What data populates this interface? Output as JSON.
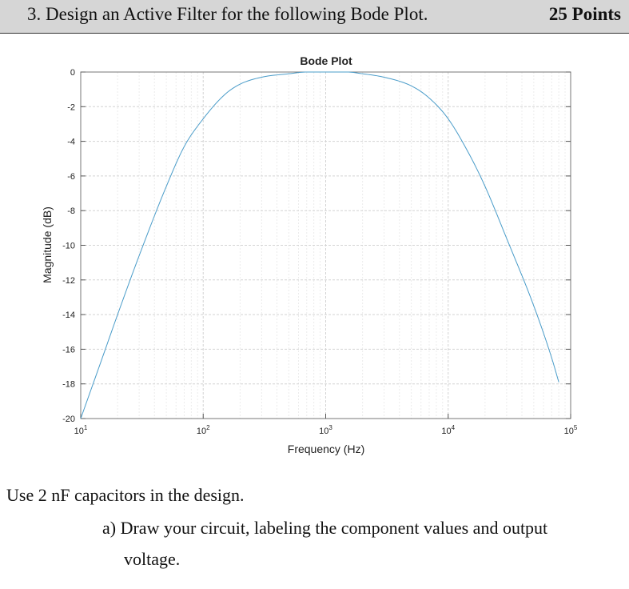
{
  "header": {
    "question": "3. Design an Active Filter for the following Bode Plot.",
    "points": "25 Points"
  },
  "chart_data": {
    "type": "line",
    "title": "Bode Plot",
    "xlabel": "Frequency (Hz)",
    "ylabel": "Magnitude (dB)",
    "xscale": "log",
    "xlim": [
      10,
      100000
    ],
    "ylim": [
      -20,
      0
    ],
    "grid": true,
    "x_ticks": [
      {
        "value": 10,
        "base": "10",
        "exp": "1"
      },
      {
        "value": 100,
        "base": "10",
        "exp": "2"
      },
      {
        "value": 1000,
        "base": "10",
        "exp": "3"
      },
      {
        "value": 10000,
        "base": "10",
        "exp": "4"
      },
      {
        "value": 100000,
        "base": "10",
        "exp": "5"
      }
    ],
    "y_ticks": [
      "0",
      "-2",
      "-4",
      "-6",
      "-8",
      "-10",
      "-12",
      "-14",
      "-16",
      "-18",
      "-20"
    ],
    "line_color": "#4a9cc9",
    "series": [
      {
        "x": [
          10,
          15,
          20,
          30,
          50,
          70,
          100,
          150,
          200,
          300,
          500,
          700,
          1000,
          1500,
          2000,
          3000,
          5000,
          7000,
          10000,
          15000,
          20000,
          30000,
          50000,
          70000,
          80000
        ],
        "y": [
          -20,
          -16.5,
          -14.0,
          -10.6,
          -6.6,
          -4.3,
          -2.7,
          -1.3,
          -0.7,
          -0.3,
          -0.1,
          0.0,
          0.0,
          0.0,
          -0.1,
          -0.3,
          -0.8,
          -1.5,
          -2.7,
          -4.8,
          -6.6,
          -9.6,
          -13.5,
          -16.5,
          -17.9
        ]
      }
    ]
  },
  "instructions": {
    "capacitors": "Use 2 nF capacitors in the design.",
    "part_a_label": "a)",
    "part_a_line1": "Draw your circuit, labeling the component values and output",
    "part_a_line2": "voltage."
  }
}
